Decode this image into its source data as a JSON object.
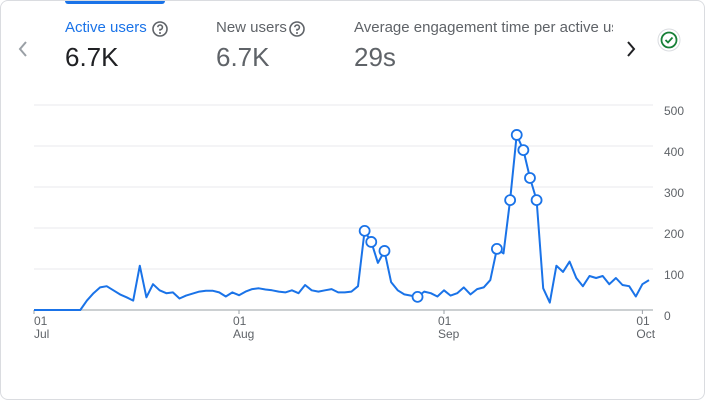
{
  "metrics": [
    {
      "label": "Active users",
      "value": "6.7K"
    },
    {
      "label": "New users",
      "value": "6.7K"
    },
    {
      "label": "Average engagement time per active us",
      "value": "29s"
    }
  ],
  "chart_data": {
    "type": "line",
    "color": "#1a73e8",
    "categories": [
      "01\nJul",
      null,
      null,
      null,
      null,
      null,
      null,
      null,
      null,
      null,
      null,
      null,
      null,
      null,
      null,
      null,
      null,
      null,
      null,
      null,
      null,
      null,
      null,
      null,
      null,
      null,
      null,
      null,
      null,
      null,
      null,
      "01\nAug",
      null,
      null,
      null,
      null,
      null,
      null,
      null,
      null,
      null,
      null,
      null,
      null,
      null,
      null,
      null,
      null,
      null,
      null,
      null,
      null,
      null,
      null,
      null,
      null,
      null,
      null,
      null,
      null,
      null,
      null,
      "01\nSep",
      null,
      null,
      null,
      null,
      null,
      null,
      null,
      null,
      null,
      null,
      null,
      null,
      null,
      null,
      null,
      null,
      null,
      null,
      null,
      null,
      null,
      null,
      null,
      null,
      null,
      null,
      null,
      null,
      null,
      "01\nOct",
      null
    ],
    "values": [
      0,
      0,
      0,
      0,
      0,
      0,
      0,
      0,
      23,
      41,
      55,
      58,
      48,
      38,
      31,
      23,
      108,
      31,
      63,
      48,
      41,
      43,
      28,
      35,
      40,
      45,
      47,
      47,
      43,
      33,
      43,
      36,
      45,
      51,
      53,
      50,
      48,
      45,
      43,
      48,
      41,
      61,
      48,
      45,
      48,
      51,
      43,
      43,
      45,
      58,
      193,
      166,
      115,
      144,
      68,
      48,
      38,
      35,
      32,
      45,
      41,
      33,
      48,
      35,
      41,
      55,
      38,
      51,
      55,
      73,
      149,
      138,
      268,
      427,
      390,
      322,
      268,
      53,
      18,
      108,
      93,
      118,
      78,
      58,
      83,
      78,
      83,
      63,
      78,
      61,
      58,
      33,
      63,
      73
    ],
    "anomalies": [
      50,
      51,
      53,
      58,
      70,
      72,
      73,
      74,
      75,
      76
    ],
    "ylim": [
      0,
      500
    ],
    "yticks": [
      0,
      100,
      200,
      300,
      400,
      500
    ],
    "grid": true
  }
}
